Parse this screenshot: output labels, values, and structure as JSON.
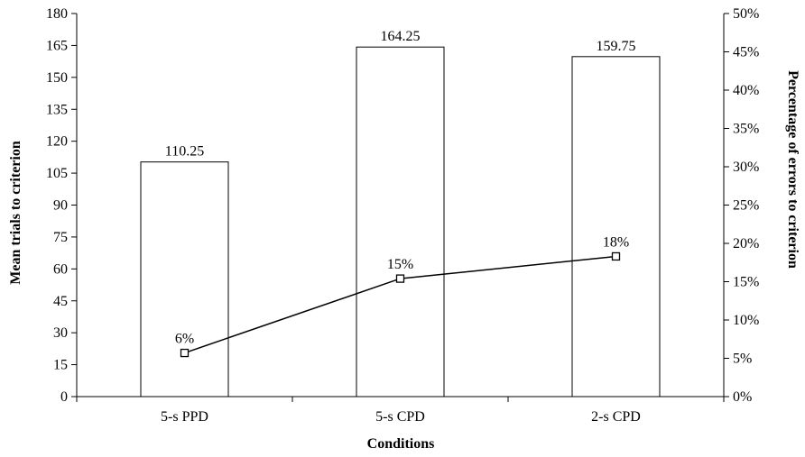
{
  "chart_data": {
    "type": "bar",
    "categories": [
      "5-s PPD",
      "5-s CPD",
      "2-s CPD"
    ],
    "series": [
      {
        "kind": "bar",
        "axis": "left",
        "values": [
          110.25,
          164.25,
          159.75
        ],
        "data_labels": [
          "110.25",
          "164.25",
          "159.75"
        ],
        "color": "#ffffff"
      },
      {
        "kind": "line",
        "axis": "right",
        "values": [
          0.057,
          0.154,
          0.183
        ],
        "data_labels": [
          "6%",
          "15%",
          "18%"
        ],
        "marker": "square",
        "color": "#000000"
      }
    ],
    "xlabel": "Conditions",
    "ylabel": "Mean trials  to criterion",
    "y2label": "Percentage of errors to criterion",
    "ylim": [
      0,
      180
    ],
    "y_ticks": [
      "0",
      "15",
      "30",
      "45",
      "60",
      "75",
      "90",
      "105",
      "120",
      "135",
      "150",
      "165",
      "180"
    ],
    "y2lim": [
      0,
      0.5
    ],
    "y2_ticks": [
      "0%",
      "5%",
      "10%",
      "15%",
      "20%",
      "25%",
      "30%",
      "35%",
      "40%",
      "45%",
      "50%"
    ],
    "grid": false,
    "legend": "none"
  }
}
